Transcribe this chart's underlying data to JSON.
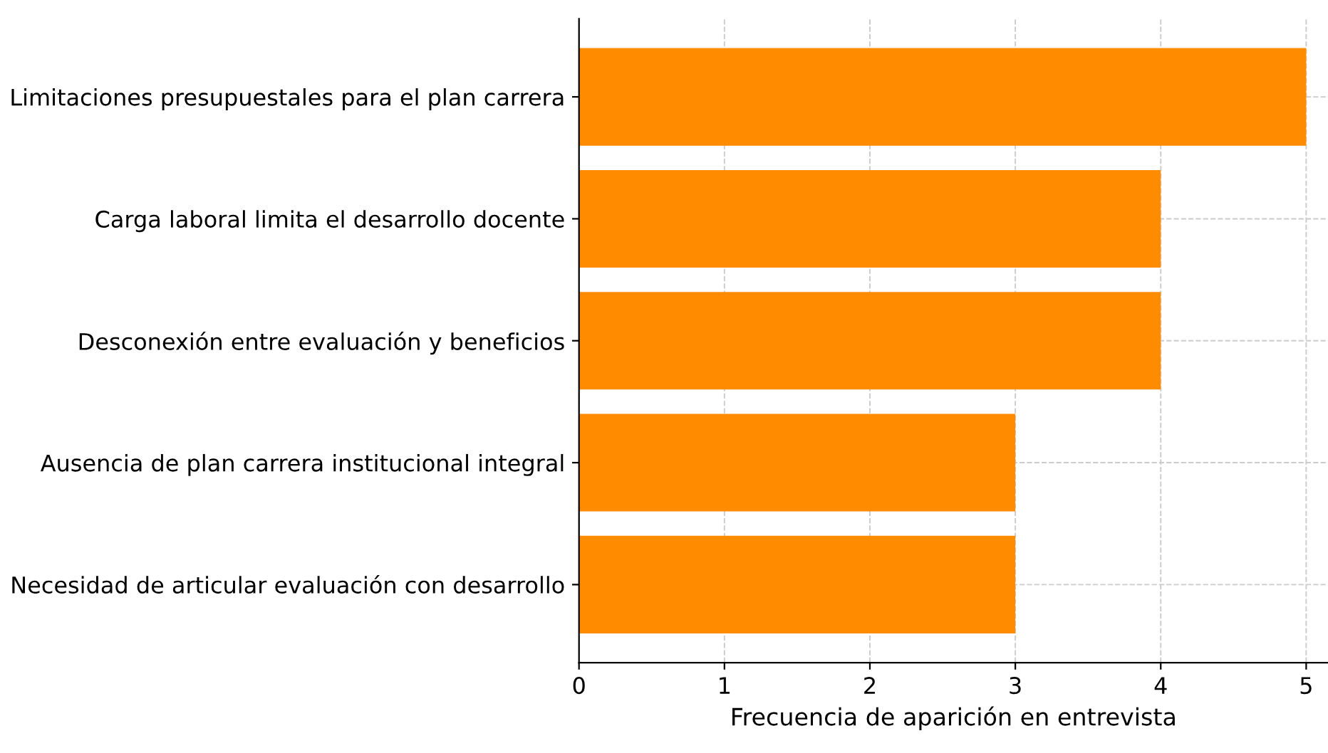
{
  "chart_data": {
    "type": "bar",
    "orientation": "horizontal",
    "xlabel": "Frecuencia de aparición en entrevista",
    "categories": [
      "Limitaciones presupuestales para el plan carrera",
      "Carga laboral limita el desarrollo docente",
      "Desconexión entre evaluación y beneficios",
      "Ausencia de plan carrera institucional integral",
      "Necesidad de articular evaluación con desarrollo"
    ],
    "values": [
      5,
      4,
      4,
      3,
      3
    ],
    "color": "#ff8c00",
    "xlim": [
      0,
      5.15
    ],
    "xticks": [
      0,
      1,
      2,
      3,
      4,
      5
    ],
    "grid": true,
    "line_style": "dashed"
  }
}
